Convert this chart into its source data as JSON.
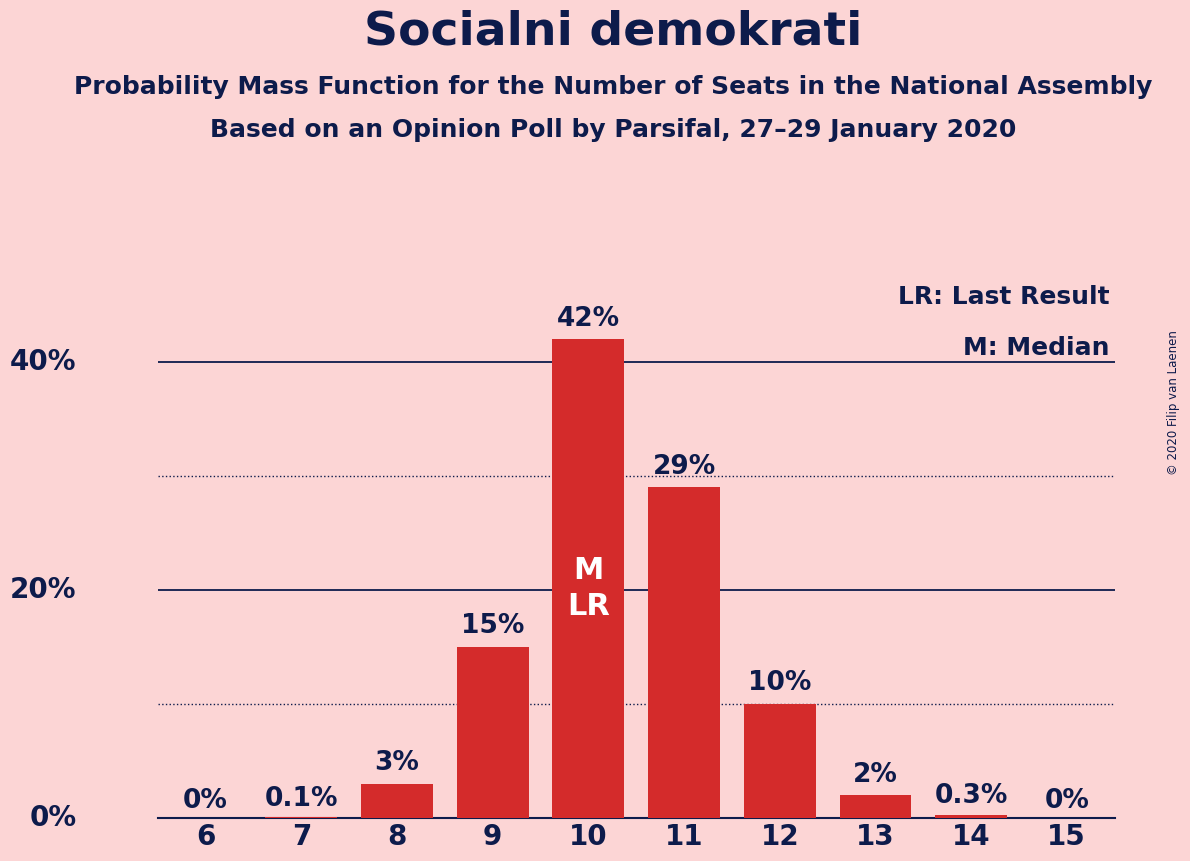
{
  "title": "Socialni demokrati",
  "subtitle1": "Probability Mass Function for the Number of Seats in the National Assembly",
  "subtitle2": "Based on an Opinion Poll by Parsifal, 27–29 January 2020",
  "copyright": "© 2020 Filip van Laenen",
  "categories": [
    6,
    7,
    8,
    9,
    10,
    11,
    12,
    13,
    14,
    15
  ],
  "values": [
    0.0,
    0.1,
    3.0,
    15.0,
    42.0,
    29.0,
    10.0,
    2.0,
    0.3,
    0.0
  ],
  "labels": [
    "0%",
    "0.1%",
    "3%",
    "15%",
    "42%",
    "29%",
    "10%",
    "2%",
    "0.3%",
    "0%"
  ],
  "bar_color": "#d42b2b",
  "background_color": "#fcd5d5",
  "text_color": "#0d1b4b",
  "title_fontsize": 34,
  "subtitle_fontsize": 18,
  "ylabel_ticks": [
    0,
    20,
    40
  ],
  "dotted_lines": [
    10,
    30
  ],
  "solid_lines": [
    0,
    20,
    40
  ],
  "median_seat": 10,
  "last_result_seat": 10,
  "legend_text1": "LR: Last Result",
  "legend_text2": "M: Median",
  "ylim": [
    0,
    47
  ],
  "label_fontsize": 19,
  "tick_fontsize": 20,
  "legend_fontsize": 18,
  "mlr_fontsize": 22
}
